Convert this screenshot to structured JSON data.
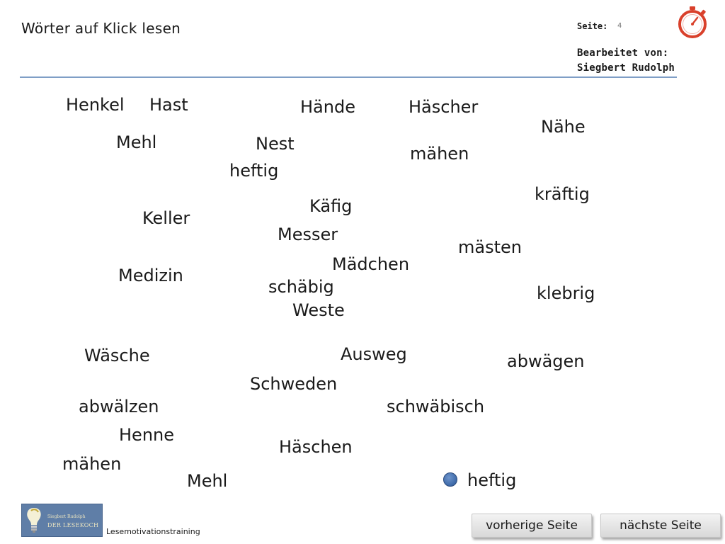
{
  "header": {
    "title": "Wörter auf  Klick lesen",
    "seite_label": "Seite:",
    "seite_number": "4",
    "edited_by_label": "Bearbeitet  von:",
    "edited_by_name": "Siegbert  Rudolph"
  },
  "icons": {
    "timer": "stopwatch-icon",
    "logo_bulb": "lightbulb-icon",
    "marker": "dot-icon"
  },
  "colors": {
    "accent": "#7f9ec6",
    "timer_red": "#d9402b",
    "marker_blue": "#3d69a8",
    "logo_bg": "#5f7ea7"
  },
  "words": [
    "Henkel",
    "Hast",
    "Hände",
    "Häscher",
    "Nähe",
    "Mehl",
    "Nest",
    "mähen",
    "heftig",
    "kräftig",
    "Käfig",
    "Keller",
    "Messer",
    "mästen",
    "Mädchen",
    "Medizin",
    "schäbig",
    "klebrig",
    "Weste",
    "Wäsche",
    "Ausweg",
    "abwägen",
    "Schweden",
    "abwälzen",
    "schwäbisch",
    "Henne",
    "Häschen",
    "mähen",
    "Mehl",
    "heftig"
  ],
  "footer": {
    "logo_line1": "Siegbert Rudolph",
    "logo_line2": "DER LESEKOCH",
    "program": "Lesemotivationstraining",
    "prev_button": "vorherige Seite",
    "next_button": "nächste Seite"
  }
}
